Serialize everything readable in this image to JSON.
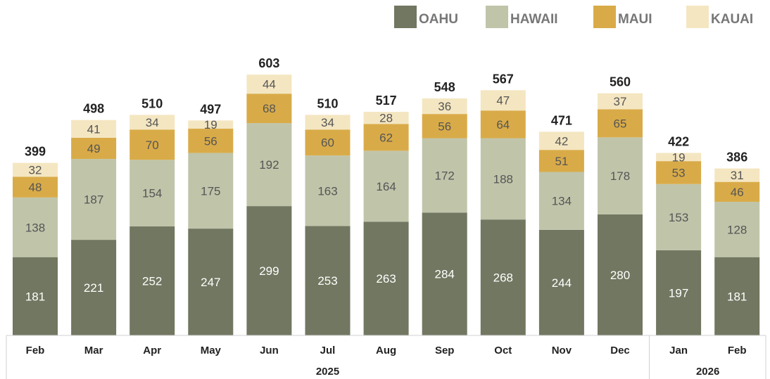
{
  "chart_data": {
    "type": "bar",
    "stacked": true,
    "months": [
      "Feb",
      "Mar",
      "Apr",
      "May",
      "Jun",
      "Jul",
      "Aug",
      "Sep",
      "Oct",
      "Nov",
      "Dec",
      "Jan",
      "Feb"
    ],
    "years": [
      {
        "label": "2025",
        "count": 11
      },
      {
        "label": "2026",
        "count": 2
      }
    ],
    "series": [
      {
        "name": "OAHU",
        "color": "#717760",
        "label_color": "#ffffff",
        "values": [
          181,
          221,
          252,
          247,
          299,
          253,
          263,
          284,
          268,
          244,
          280,
          197,
          181
        ]
      },
      {
        "name": "HAWAII",
        "color": "#c0c5aa",
        "label_color": "#555555",
        "values": [
          138,
          187,
          154,
          175,
          192,
          163,
          164,
          172,
          188,
          134,
          178,
          153,
          128
        ]
      },
      {
        "name": "MAUI",
        "color": "#d9ab48",
        "label_color": "#555555",
        "values": [
          48,
          49,
          70,
          56,
          68,
          60,
          62,
          56,
          64,
          51,
          65,
          53,
          46
        ]
      },
      {
        "name": "KAUAI",
        "color": "#f4e6c1",
        "label_color": "#555555",
        "values": [
          32,
          41,
          34,
          19,
          44,
          34,
          28,
          36,
          47,
          42,
          37,
          19,
          31
        ]
      }
    ],
    "totals": [
      399,
      498,
      510,
      497,
      603,
      510,
      517,
      548,
      567,
      471,
      560,
      422,
      386
    ],
    "ylim": [
      0,
      640
    ],
    "grid": false,
    "legend_position": "top-right"
  }
}
